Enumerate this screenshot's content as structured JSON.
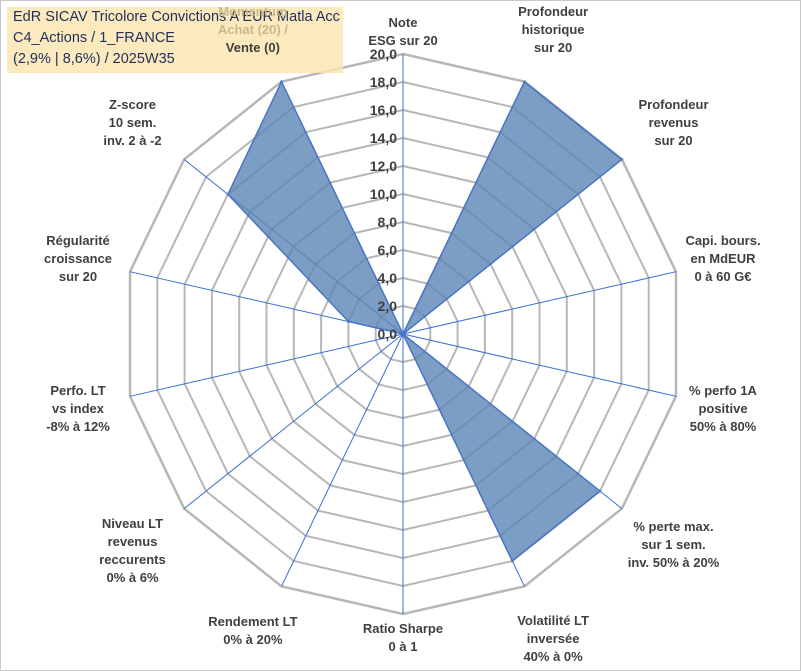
{
  "chart_data": {
    "type": "radar",
    "title_lines": [
      "EdR SICAV Tricolore Convictions A EUR Matla Acc",
      "C4_Actions / 1_FRANCE",
      "(2,9% | 8,6%) / 2025W35"
    ],
    "rlim": [
      0,
      20
    ],
    "ticks": [
      "0,0",
      "2,0",
      "4,0",
      "6,0",
      "8,0",
      "10,0",
      "12,0",
      "14,0",
      "16,0",
      "18,0",
      "20,0"
    ],
    "grid": true,
    "series": [
      {
        "color": "#5b86b5",
        "edge": "#4a74c4"
      }
    ],
    "axes": [
      {
        "lines": [
          "Note",
          "ESG sur 20"
        ],
        "value": 0
      },
      {
        "lines": [
          "Profondeur",
          "historique",
          "sur 20"
        ],
        "value": 20
      },
      {
        "lines": [
          "Profondeur",
          "revenus",
          "sur 20"
        ],
        "value": 20
      },
      {
        "lines": [
          "Capi. bours.",
          "en MdEUR",
          "0 à 60 G€"
        ],
        "value": 0
      },
      {
        "lines": [
          "% perfo 1A",
          "positive",
          "50% à 80%"
        ],
        "value": 0
      },
      {
        "lines": [
          "% perte max.",
          "sur 1 sem.",
          "inv. 50% à 20%"
        ],
        "value": 18
      },
      {
        "lines": [
          "Volatilité LT",
          "inversée",
          "40% à 0%"
        ],
        "value": 18
      },
      {
        "lines": [
          "Ratio Sharpe",
          "0 à 1"
        ],
        "value": 0
      },
      {
        "lines": [
          "Rendement LT",
          "0% à 20%"
        ],
        "value": 0
      },
      {
        "lines": [
          "Niveau LT",
          "revenus",
          "reccurents",
          "0% à 6%"
        ],
        "value": 0
      },
      {
        "lines": [
          "Perfo. LT",
          "vs index",
          "-8% à 12%"
        ],
        "value": 0
      },
      {
        "lines": [
          "Régularité",
          "croissance",
          "sur 20"
        ],
        "value": 4
      },
      {
        "lines": [
          "Z-score",
          "10 sem.",
          "inv. 2 à -2"
        ],
        "value": 16
      },
      {
        "lines": [
          "Momentum",
          "Achat (20) /",
          "Vente (0)"
        ],
        "value": 20,
        "faded_lines": 2
      }
    ]
  }
}
